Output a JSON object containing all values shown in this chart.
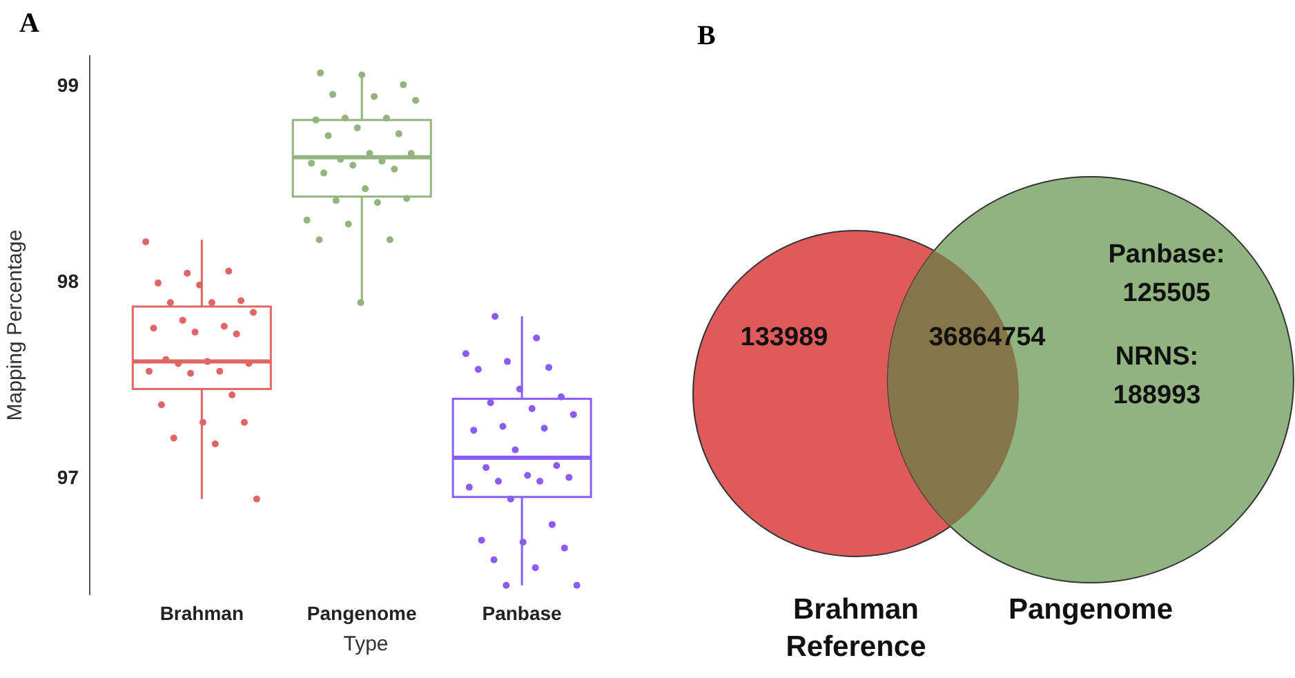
{
  "chart_data": [
    {
      "type": "box",
      "title": "A",
      "xlabel": "Type",
      "ylabel": "Mapping Percentage",
      "categories": [
        "Brahman",
        "Pangenome",
        "Panbase"
      ],
      "colors": [
        "#e06666",
        "#93b47f",
        "#8a5cf6"
      ],
      "ylim": [
        96.4,
        99.15
      ],
      "yticks": [
        97,
        98,
        99
      ],
      "marker": "circle",
      "boxes": [
        {
          "low": 96.89,
          "q1": 97.45,
          "median": 97.59,
          "q3": 97.87,
          "high": 98.21
        },
        {
          "low": 97.89,
          "q1": 98.43,
          "median": 98.63,
          "q3": 98.82,
          "high": 99.05
        },
        {
          "low": 96.45,
          "q1": 96.9,
          "median": 97.1,
          "q3": 97.4,
          "high": 97.82
        }
      ],
      "series": [
        {
          "type": "scatter",
          "color": "#e06666",
          "x": [
            "Brahman",
            "Brahman",
            "Brahman",
            "Brahman",
            "Brahman",
            "Brahman",
            "Brahman",
            "Brahman",
            "Brahman",
            "Brahman",
            "Brahman",
            "Brahman",
            "Brahman",
            "Brahman",
            "Brahman",
            "Brahman",
            "Brahman",
            "Brahman",
            "Brahman",
            "Brahman",
            "Brahman",
            "Brahman",
            "Brahman",
            "Brahman",
            "Brahman",
            "Brahman",
            "Brahman",
            "Brahman"
          ],
          "values": [
            98.2,
            98.04,
            98.05,
            97.99,
            97.98,
            97.9,
            97.89,
            97.89,
            97.84,
            97.8,
            97.77,
            97.76,
            97.74,
            97.73,
            97.6,
            97.59,
            97.58,
            97.58,
            97.54,
            97.54,
            97.53,
            97.42,
            97.37,
            97.28,
            97.28,
            97.2,
            97.17,
            96.89
          ]
        },
        {
          "type": "scatter",
          "color": "#93b47f",
          "x": [
            "Pangenome",
            "Pangenome",
            "Pangenome",
            "Pangenome",
            "Pangenome",
            "Pangenome",
            "Pangenome",
            "Pangenome",
            "Pangenome",
            "Pangenome",
            "Pangenome",
            "Pangenome",
            "Pangenome",
            "Pangenome",
            "Pangenome",
            "Pangenome",
            "Pangenome",
            "Pangenome",
            "Pangenome",
            "Pangenome",
            "Pangenome",
            "Pangenome",
            "Pangenome",
            "Pangenome",
            "Pangenome",
            "Pangenome",
            "Pangenome",
            "Pangenome",
            "Pangenome"
          ],
          "values": [
            99.06,
            99.05,
            99.0,
            98.95,
            98.94,
            98.92,
            98.83,
            98.83,
            98.82,
            98.78,
            98.75,
            98.74,
            98.65,
            98.65,
            98.62,
            98.61,
            98.6,
            98.59,
            98.57,
            98.55,
            98.47,
            98.42,
            98.41,
            98.4,
            98.31,
            98.29,
            98.21,
            98.21,
            97.89
          ]
        },
        {
          "type": "scatter",
          "color": "#8a5cf6",
          "x": [
            "Panbase",
            "Panbase",
            "Panbase",
            "Panbase",
            "Panbase",
            "Panbase",
            "Panbase",
            "Panbase",
            "Panbase",
            "Panbase",
            "Panbase",
            "Panbase",
            "Panbase",
            "Panbase",
            "Panbase",
            "Panbase",
            "Panbase",
            "Panbase",
            "Panbase",
            "Panbase",
            "Panbase",
            "Panbase",
            "Panbase",
            "Panbase",
            "Panbase",
            "Panbase",
            "Panbase",
            "Panbase",
            "Panbase",
            "Panbase",
            "Panbase"
          ],
          "values": [
            97.82,
            97.71,
            97.63,
            97.59,
            97.56,
            97.55,
            97.45,
            97.41,
            97.38,
            97.35,
            97.32,
            97.26,
            97.25,
            97.24,
            97.14,
            97.06,
            97.05,
            97.01,
            97.0,
            96.98,
            96.98,
            96.95,
            96.89,
            96.76,
            96.68,
            96.67,
            96.64,
            96.58,
            96.54,
            96.45,
            96.45
          ]
        }
      ]
    },
    {
      "type": "other",
      "title": "B",
      "categories": [
        "Brahman\nReference",
        "Pangenome"
      ],
      "colors": [
        "#df5b5b",
        "#90b380",
        "#857548"
      ],
      "annotations": [
        "133989",
        "36864754",
        "Panbase:\n125505",
        "NRNS:\n188993"
      ]
    }
  ]
}
